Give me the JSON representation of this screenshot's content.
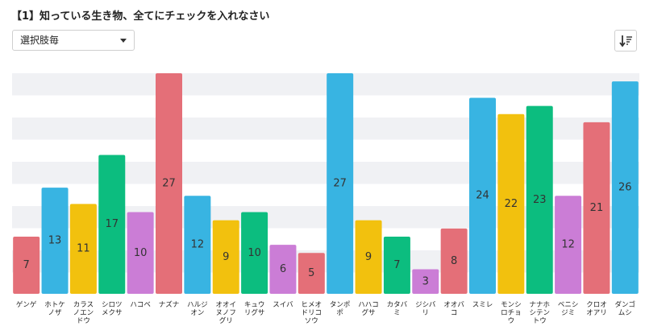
{
  "title": "【1】知っている生き物、全てにチェックを入れなさい",
  "select": {
    "value": "選択肢毎"
  },
  "icons": {
    "dropdown": "chevron-down-icon",
    "sort": "sort-descending-icon"
  },
  "colors": {
    "red": "#e46f78",
    "blue": "#38b4e2",
    "yellow": "#f2c10e",
    "green": "#0cbd7f",
    "purple": "#cb7dd6",
    "gridband": "#f0f1f4"
  },
  "chart_data": {
    "type": "bar",
    "categories": [
      "ゲンゲ",
      "ホトケノザ",
      "カラスノエンドウ",
      "シロツメクサ",
      "ハコベ",
      "ナズナ",
      "ハルジオン",
      "オオイヌノフグリ",
      "キュウリグサ",
      "スイバ",
      "ヒメオドリコソウ",
      "タンポポ",
      "ハハコグサ",
      "カタバミ",
      "ジシバリ",
      "オオバコ",
      "スミレ",
      "モンシロチョウ",
      "ナナホシテントウ",
      "ベニシジミ",
      "クロオオアリ",
      "ダンゴムシ"
    ],
    "label_lines": [
      [
        "ゲンゲ"
      ],
      [
        "ホトケ",
        "ノザ"
      ],
      [
        "カラス",
        "ノエン",
        "ドウ"
      ],
      [
        "シロツ",
        "メクサ"
      ],
      [
        "ハコベ"
      ],
      [
        "ナズナ"
      ],
      [
        "ハルジ",
        "オン"
      ],
      [
        "オオイ",
        "ヌノフ",
        "グリ"
      ],
      [
        "キュウ",
        "リグサ"
      ],
      [
        "スイバ"
      ],
      [
        "ヒメオ",
        "ドリコ",
        "ソウ"
      ],
      [
        "タンポ",
        "ポ"
      ],
      [
        "ハハコ",
        "グサ"
      ],
      [
        "カタバ",
        "ミ"
      ],
      [
        "ジシバ",
        "リ"
      ],
      [
        "オオバ",
        "コ"
      ],
      [
        "スミレ"
      ],
      [
        "モンシ",
        "ロチョ",
        "ウ"
      ],
      [
        "ナナホ",
        "シテン",
        "トウ"
      ],
      [
        "ベニシ",
        "ジミ"
      ],
      [
        "クロオ",
        "オアリ"
      ],
      [
        "ダンゴ",
        "ムシ"
      ]
    ],
    "values": [
      7,
      13,
      11,
      17,
      10,
      27,
      12,
      9,
      10,
      6,
      5,
      27,
      9,
      7,
      3,
      8,
      24,
      22,
      23,
      12,
      21,
      26
    ],
    "bar_colors": [
      "red",
      "blue",
      "yellow",
      "green",
      "purple",
      "red",
      "blue",
      "yellow",
      "green",
      "purple",
      "red",
      "blue",
      "yellow",
      "green",
      "purple",
      "red",
      "blue",
      "yellow",
      "green",
      "purple",
      "red",
      "blue"
    ],
    "ylim": [
      0,
      27
    ],
    "grid": true,
    "legend": "none"
  }
}
